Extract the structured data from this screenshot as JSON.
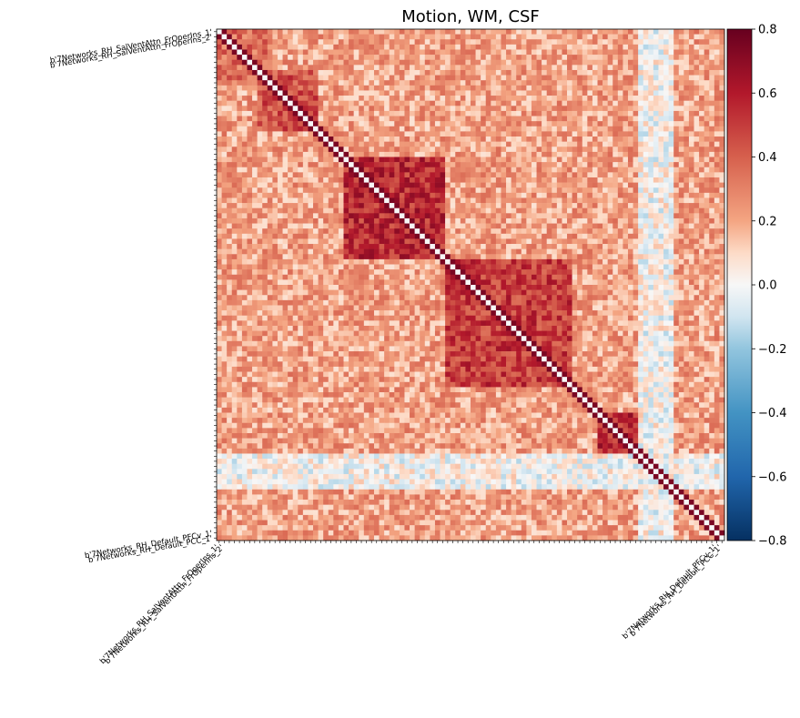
{
  "chart_data": {
    "type": "heatmap",
    "title": "Motion, WM, CSF",
    "xlabel": "",
    "ylabel": "",
    "n_regions": 100,
    "colormap": "RdBu_r",
    "vmin": -0.8,
    "vmax": 0.8,
    "colorbar_ticks": [
      0.8,
      0.6,
      0.4,
      0.2,
      0.0,
      -0.2,
      -0.4,
      -0.6,
      -0.8
    ],
    "colorbar_tick_labels": [
      "0.8",
      "0.6",
      "0.4",
      "0.2",
      "0.0",
      "−0.2",
      "−0.4",
      "−0.6",
      "−0.8"
    ],
    "colormap_stops": [
      {
        "value": -0.8,
        "color": "#053061"
      },
      {
        "value": -0.6,
        "color": "#2166ac"
      },
      {
        "value": -0.4,
        "color": "#4393c3"
      },
      {
        "value": -0.2,
        "color": "#92c5de"
      },
      {
        "value": -0.1,
        "color": "#d1e5f0"
      },
      {
        "value": 0.0,
        "color": "#f7f7f7"
      },
      {
        "value": 0.1,
        "color": "#fddbc7"
      },
      {
        "value": 0.2,
        "color": "#f4a582"
      },
      {
        "value": 0.4,
        "color": "#d6604d"
      },
      {
        "value": 0.6,
        "color": "#b2182b"
      },
      {
        "value": 0.8,
        "color": "#67001f"
      }
    ],
    "diagonal_value": 0.0,
    "visible_labels": [
      "b'7Networks_RH_SalVentAttn_FrOperIns_1'",
      "b'7Networks_RH_SalVentAttn_FrOperIns_2'",
      "b'7Networks_RH_Default_PFCv_1'",
      "b'7Networks_RH_Default_PCC_1'"
    ],
    "block_structure": [
      {
        "rows": [
          0,
          10
        ],
        "cols": [
          0,
          10
        ],
        "r": 0.35
      },
      {
        "rows": [
          8,
          20
        ],
        "cols": [
          8,
          20
        ],
        "r": 0.45
      },
      {
        "rows": [
          25,
          45
        ],
        "cols": [
          25,
          45
        ],
        "r": 0.55
      },
      {
        "rows": [
          45,
          70
        ],
        "cols": [
          45,
          70
        ],
        "r": 0.5
      },
      {
        "rows": [
          75,
          85
        ],
        "cols": [
          75,
          85
        ],
        "r": 0.55
      },
      {
        "rows": [
          83,
          90
        ],
        "cols": [
          0,
          100
        ],
        "r": 0.0
      },
      {
        "rows": [
          0,
          100
        ],
        "cols": [
          83,
          90
        ],
        "r": 0.0
      }
    ]
  }
}
